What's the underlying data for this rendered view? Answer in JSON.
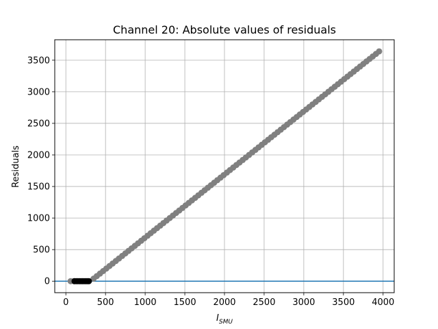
{
  "chart_data": {
    "type": "scatter",
    "title": "Channel 20: Absolute values of residuals",
    "xlabel_main": "I",
    "xlabel_sub": "SMU",
    "ylabel": "Residuals",
    "xlim": [
      -140,
      4140
    ],
    "ylim": [
      -182,
      3824
    ],
    "xticks": [
      0,
      500,
      1000,
      1500,
      2000,
      2500,
      3000,
      3500,
      4000
    ],
    "yticks": [
      0,
      500,
      1000,
      1500,
      2000,
      2500,
      3000,
      3500
    ],
    "grid": true,
    "reference_line": {
      "y": 0,
      "color": "#1f77b4"
    },
    "series": [
      {
        "color": "#808080",
        "points": [
          [
            60,
            0
          ],
          [
            100,
            0
          ],
          [
            350,
            40
          ],
          [
            400,
            80
          ],
          [
            3950,
            3640
          ]
        ],
        "x_start": 350,
        "x_end": 3950,
        "x_step": 40,
        "y_start": 40,
        "y_end": 3640
      },
      {
        "color": "#000000",
        "points": [
          [
            110,
            0
          ],
          [
            130,
            0
          ],
          [
            150,
            0
          ],
          [
            170,
            0
          ],
          [
            190,
            0
          ],
          [
            210,
            0
          ],
          [
            230,
            0
          ],
          [
            250,
            0
          ],
          [
            270,
            0
          ],
          [
            290,
            0
          ]
        ]
      }
    ]
  }
}
